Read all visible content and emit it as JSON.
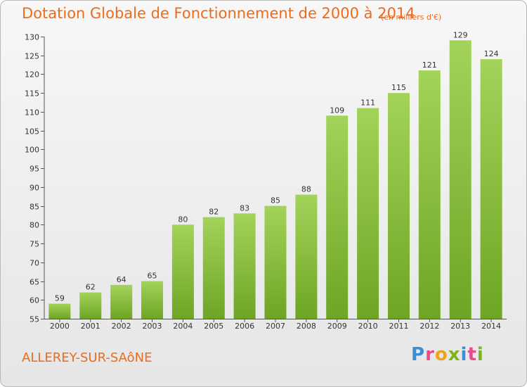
{
  "header": {
    "title": "Dotation Globale de Fonctionnement de 2000 à 2014",
    "subtitle": "(en milliers d'€)"
  },
  "footer": {
    "commune": "ALLEREY-SUR-SAôNE",
    "logo": {
      "letters": [
        "P",
        "r",
        "o",
        "x",
        "i",
        "t",
        "i"
      ],
      "colors": [
        "#3a8fd6",
        "#e84b8a",
        "#f0a21b",
        "#7cb51b",
        "#3a8fd6",
        "#e84b8a",
        "#7cb51b"
      ]
    }
  },
  "chart_data": {
    "type": "bar",
    "categories": [
      "2000",
      "2001",
      "2002",
      "2003",
      "2004",
      "2005",
      "2006",
      "2007",
      "2008",
      "2009",
      "2010",
      "2011",
      "2012",
      "2013",
      "2014"
    ],
    "values": [
      59,
      62,
      64,
      65,
      80,
      82,
      83,
      85,
      88,
      109,
      111,
      115,
      121,
      129,
      124
    ],
    "ylim": [
      55,
      130
    ],
    "yticks": [
      55,
      60,
      65,
      70,
      75,
      80,
      85,
      90,
      95,
      100,
      105,
      110,
      115,
      120,
      125,
      130
    ],
    "grid": false,
    "colors": {
      "bar_top": "#a3d35a",
      "bar_bottom": "#6ea524"
    }
  }
}
